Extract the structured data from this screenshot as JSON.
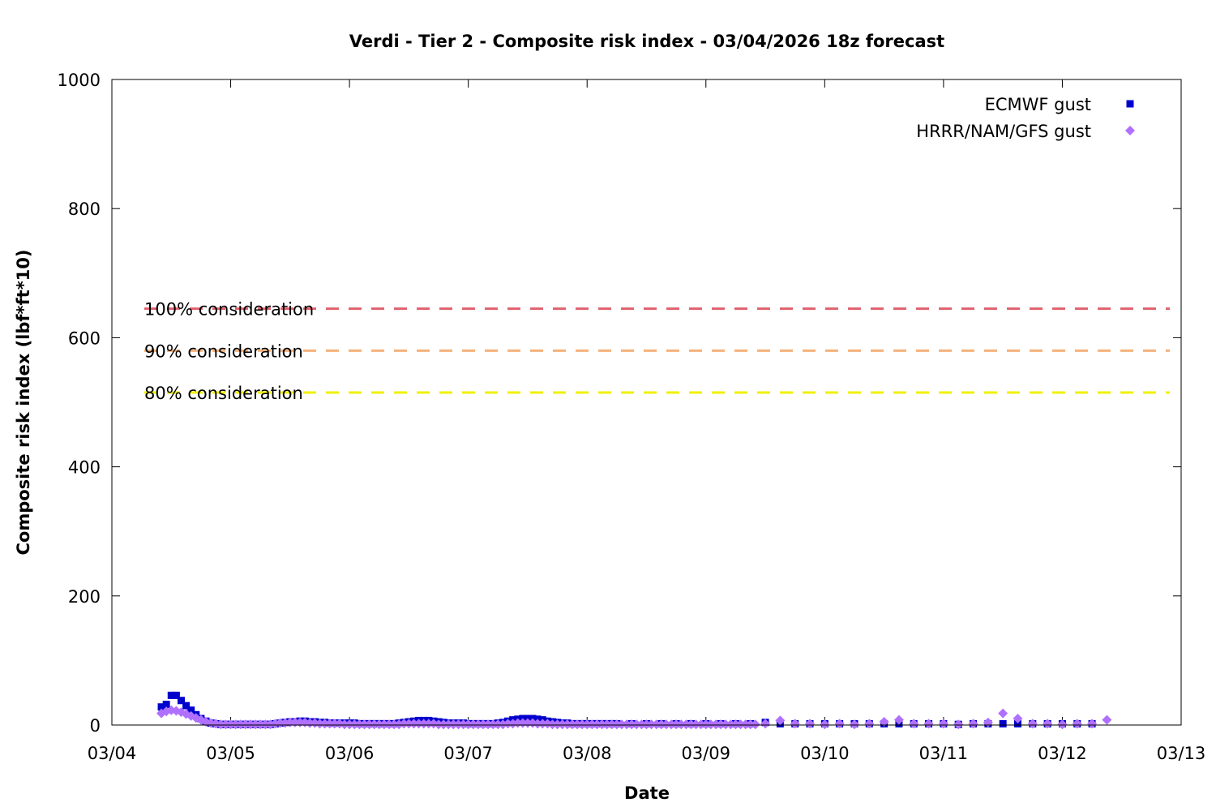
{
  "chart_data": {
    "type": "scatter",
    "title": "Verdi - Tier 2 - Composite risk index - 03/04/2026 18z forecast",
    "xlabel": "Date",
    "ylabel": "Composite risk index (lbf*ft*10)",
    "xlim": [
      "03/04 00z",
      "03/13 00z"
    ],
    "ylim": [
      0,
      1000
    ],
    "x_ticks": [
      "03/04",
      "03/05",
      "03/06",
      "03/07",
      "03/08",
      "03/09",
      "03/10",
      "03/11",
      "03/12",
      "03/13"
    ],
    "y_ticks": [
      "0",
      "200",
      "400",
      "600",
      "800",
      "1000"
    ],
    "legend_position": "top-right",
    "grid": false,
    "reference_lines": [
      {
        "label": "100% consideration",
        "value": 645,
        "color": "#e0606e"
      },
      {
        "label": "90% consideration",
        "value": 580,
        "color": "#f4b27c"
      },
      {
        "label": "80% consideration",
        "value": 515,
        "color": "#f0f000"
      }
    ],
    "series": [
      {
        "name": "ECMWF gust",
        "color": "#0000cc",
        "marker": "square",
        "points": [
          [
            "03/04 10z",
            28
          ],
          [
            "03/04 11z",
            32
          ],
          [
            "03/04 12z",
            46
          ],
          [
            "03/04 13z",
            46
          ],
          [
            "03/04 14z",
            38
          ],
          [
            "03/04 15z",
            30
          ],
          [
            "03/04 16z",
            23
          ],
          [
            "03/04 17z",
            16
          ],
          [
            "03/04 18z",
            10
          ],
          [
            "03/04 19z",
            6
          ],
          [
            "03/04 20z",
            3
          ],
          [
            "03/04 21z",
            2
          ],
          [
            "03/04 22z",
            1
          ],
          [
            "03/04 23z",
            1
          ],
          [
            "03/05 00z",
            1
          ],
          [
            "03/05 01z",
            1
          ],
          [
            "03/05 02z",
            1
          ],
          [
            "03/05 03z",
            1
          ],
          [
            "03/05 04z",
            1
          ],
          [
            "03/05 05z",
            1
          ],
          [
            "03/05 06z",
            1
          ],
          [
            "03/05 07z",
            1
          ],
          [
            "03/05 08z",
            1
          ],
          [
            "03/05 09z",
            2
          ],
          [
            "03/05 10z",
            3
          ],
          [
            "03/05 11z",
            4
          ],
          [
            "03/05 12z",
            5
          ],
          [
            "03/05 13z",
            5
          ],
          [
            "03/05 14z",
            6
          ],
          [
            "03/05 15z",
            6
          ],
          [
            "03/05 16z",
            5
          ],
          [
            "03/05 17z",
            5
          ],
          [
            "03/05 18z",
            4
          ],
          [
            "03/05 19z",
            4
          ],
          [
            "03/05 20z",
            3
          ],
          [
            "03/05 21z",
            3
          ],
          [
            "03/05 22z",
            3
          ],
          [
            "03/05 23z",
            3
          ],
          [
            "03/06 00z",
            3
          ],
          [
            "03/06 01z",
            3
          ],
          [
            "03/06 02z",
            2
          ],
          [
            "03/06 03z",
            2
          ],
          [
            "03/06 04z",
            2
          ],
          [
            "03/06 05z",
            2
          ],
          [
            "03/06 06z",
            2
          ],
          [
            "03/06 07z",
            2
          ],
          [
            "03/06 08z",
            2
          ],
          [
            "03/06 09z",
            2
          ],
          [
            "03/06 10z",
            3
          ],
          [
            "03/06 11z",
            4
          ],
          [
            "03/06 12z",
            5
          ],
          [
            "03/06 13z",
            6
          ],
          [
            "03/06 14z",
            7
          ],
          [
            "03/06 15z",
            7
          ],
          [
            "03/06 16z",
            7
          ],
          [
            "03/06 17z",
            6
          ],
          [
            "03/06 18z",
            5
          ],
          [
            "03/06 19z",
            4
          ],
          [
            "03/06 20z",
            3
          ],
          [
            "03/06 21z",
            3
          ],
          [
            "03/06 22z",
            3
          ],
          [
            "03/06 23z",
            3
          ],
          [
            "03/07 00z",
            2
          ],
          [
            "03/07 01z",
            2
          ],
          [
            "03/07 02z",
            2
          ],
          [
            "03/07 03z",
            2
          ],
          [
            "03/07 04z",
            2
          ],
          [
            "03/07 05z",
            2
          ],
          [
            "03/07 06z",
            3
          ],
          [
            "03/07 07z",
            4
          ],
          [
            "03/07 08z",
            6
          ],
          [
            "03/07 09z",
            8
          ],
          [
            "03/07 10z",
            9
          ],
          [
            "03/07 11z",
            10
          ],
          [
            "03/07 12z",
            10
          ],
          [
            "03/07 13z",
            10
          ],
          [
            "03/07 14z",
            9
          ],
          [
            "03/07 15z",
            8
          ],
          [
            "03/07 16z",
            6
          ],
          [
            "03/07 17z",
            5
          ],
          [
            "03/07 18z",
            4
          ],
          [
            "03/07 19z",
            3
          ],
          [
            "03/07 20z",
            3
          ],
          [
            "03/07 21z",
            2
          ],
          [
            "03/07 22z",
            2
          ],
          [
            "03/07 23z",
            2
          ],
          [
            "03/08 00z",
            2
          ],
          [
            "03/08 01z",
            2
          ],
          [
            "03/08 02z",
            2
          ],
          [
            "03/08 03z",
            2
          ],
          [
            "03/08 04z",
            2
          ],
          [
            "03/08 05z",
            2
          ],
          [
            "03/08 06z",
            2
          ],
          [
            "03/08 09z",
            2
          ],
          [
            "03/08 12z",
            2
          ],
          [
            "03/08 15z",
            2
          ],
          [
            "03/08 18z",
            2
          ],
          [
            "03/08 21z",
            2
          ],
          [
            "03/09 00z",
            2
          ],
          [
            "03/09 03z",
            2
          ],
          [
            "03/09 06z",
            2
          ],
          [
            "03/09 09z",
            2
          ],
          [
            "03/09 12z",
            4
          ],
          [
            "03/09 15z",
            2
          ],
          [
            "03/09 18z",
            2
          ],
          [
            "03/09 21z",
            2
          ],
          [
            "03/10 00z",
            2
          ],
          [
            "03/10 03z",
            2
          ],
          [
            "03/10 06z",
            2
          ],
          [
            "03/10 09z",
            2
          ],
          [
            "03/10 12z",
            2
          ],
          [
            "03/10 15z",
            2
          ],
          [
            "03/10 18z",
            2
          ],
          [
            "03/10 21z",
            2
          ],
          [
            "03/11 00z",
            2
          ],
          [
            "03/11 03z",
            1
          ],
          [
            "03/11 06z",
            2
          ],
          [
            "03/11 09z",
            2
          ],
          [
            "03/11 12z",
            2
          ],
          [
            "03/11 15z",
            2
          ],
          [
            "03/11 18z",
            2
          ],
          [
            "03/11 21z",
            2
          ],
          [
            "03/12 00z",
            2
          ],
          [
            "03/12 03z",
            2
          ],
          [
            "03/12 06z",
            2
          ]
        ]
      },
      {
        "name": "HRRR/NAM/GFS gust",
        "color": "#b070ff",
        "marker": "diamond",
        "points": [
          [
            "03/04 10z",
            18
          ],
          [
            "03/04 11z",
            21
          ],
          [
            "03/04 12z",
            23
          ],
          [
            "03/04 13z",
            22
          ],
          [
            "03/04 14z",
            20
          ],
          [
            "03/04 15z",
            17
          ],
          [
            "03/04 16z",
            14
          ],
          [
            "03/04 17z",
            11
          ],
          [
            "03/04 18z",
            8
          ],
          [
            "03/04 19z",
            5
          ],
          [
            "03/04 20z",
            3
          ],
          [
            "03/04 21z",
            2
          ],
          [
            "03/04 22z",
            1
          ],
          [
            "03/04 23z",
            1
          ],
          [
            "03/05 00z",
            1
          ],
          [
            "03/05 01z",
            1
          ],
          [
            "03/05 02z",
            1
          ],
          [
            "03/05 03z",
            1
          ],
          [
            "03/05 04z",
            1
          ],
          [
            "03/05 05z",
            1
          ],
          [
            "03/05 06z",
            1
          ],
          [
            "03/05 07z",
            1
          ],
          [
            "03/05 08z",
            1
          ],
          [
            "03/05 09z",
            2
          ],
          [
            "03/05 10z",
            3
          ],
          [
            "03/05 11z",
            3
          ],
          [
            "03/05 12z",
            4
          ],
          [
            "03/05 13z",
            4
          ],
          [
            "03/05 14z",
            4
          ],
          [
            "03/05 15z",
            4
          ],
          [
            "03/05 16z",
            3
          ],
          [
            "03/05 17z",
            3
          ],
          [
            "03/05 18z",
            2
          ],
          [
            "03/05 19z",
            2
          ],
          [
            "03/05 20z",
            2
          ],
          [
            "03/05 21z",
            2
          ],
          [
            "03/05 22z",
            2
          ],
          [
            "03/05 23z",
            1
          ],
          [
            "03/06 00z",
            1
          ],
          [
            "03/06 01z",
            1
          ],
          [
            "03/06 02z",
            1
          ],
          [
            "03/06 03z",
            1
          ],
          [
            "03/06 04z",
            1
          ],
          [
            "03/06 05z",
            1
          ],
          [
            "03/06 06z",
            1
          ],
          [
            "03/06 07z",
            1
          ],
          [
            "03/06 08z",
            1
          ],
          [
            "03/06 09z",
            1
          ],
          [
            "03/06 10z",
            1
          ],
          [
            "03/06 11z",
            2
          ],
          [
            "03/06 12z",
            2
          ],
          [
            "03/06 13z",
            2
          ],
          [
            "03/06 14z",
            2
          ],
          [
            "03/06 15z",
            2
          ],
          [
            "03/06 16z",
            2
          ],
          [
            "03/06 17z",
            2
          ],
          [
            "03/06 18z",
            1
          ],
          [
            "03/06 19z",
            1
          ],
          [
            "03/06 20z",
            1
          ],
          [
            "03/06 21z",
            1
          ],
          [
            "03/06 22z",
            1
          ],
          [
            "03/06 23z",
            1
          ],
          [
            "03/07 00z",
            1
          ],
          [
            "03/07 01z",
            1
          ],
          [
            "03/07 02z",
            1
          ],
          [
            "03/07 03z",
            1
          ],
          [
            "03/07 04z",
            1
          ],
          [
            "03/07 05z",
            1
          ],
          [
            "03/07 06z",
            1
          ],
          [
            "03/07 07z",
            1
          ],
          [
            "03/07 08z",
            2
          ],
          [
            "03/07 09z",
            2
          ],
          [
            "03/07 10z",
            3
          ],
          [
            "03/07 11z",
            3
          ],
          [
            "03/07 12z",
            3
          ],
          [
            "03/07 13z",
            3
          ],
          [
            "03/07 14z",
            2
          ],
          [
            "03/07 15z",
            2
          ],
          [
            "03/07 16z",
            2
          ],
          [
            "03/07 17z",
            1
          ],
          [
            "03/07 18z",
            1
          ],
          [
            "03/07 19z",
            1
          ],
          [
            "03/07 20z",
            1
          ],
          [
            "03/07 21z",
            1
          ],
          [
            "03/07 22z",
            1
          ],
          [
            "03/07 23z",
            1
          ],
          [
            "03/08 00z",
            1
          ],
          [
            "03/08 01z",
            1
          ],
          [
            "03/08 02z",
            1
          ],
          [
            "03/08 03z",
            1
          ],
          [
            "03/08 04z",
            1
          ],
          [
            "03/08 05z",
            1
          ],
          [
            "03/08 06z",
            1
          ],
          [
            "03/08 07z",
            1
          ],
          [
            "03/08 08z",
            1
          ],
          [
            "03/08 09z",
            1
          ],
          [
            "03/08 10z",
            1
          ],
          [
            "03/08 11z",
            1
          ],
          [
            "03/08 12z",
            1
          ],
          [
            "03/08 13z",
            1
          ],
          [
            "03/08 14z",
            1
          ],
          [
            "03/08 15z",
            1
          ],
          [
            "03/08 16z",
            1
          ],
          [
            "03/08 17z",
            1
          ],
          [
            "03/08 18z",
            1
          ],
          [
            "03/08 19z",
            1
          ],
          [
            "03/08 20z",
            1
          ],
          [
            "03/08 21z",
            1
          ],
          [
            "03/08 22z",
            1
          ],
          [
            "03/08 23z",
            1
          ],
          [
            "03/09 00z",
            1
          ],
          [
            "03/09 01z",
            1
          ],
          [
            "03/09 02z",
            1
          ],
          [
            "03/09 03z",
            1
          ],
          [
            "03/09 04z",
            1
          ],
          [
            "03/09 05z",
            1
          ],
          [
            "03/09 06z",
            1
          ],
          [
            "03/09 07z",
            1
          ],
          [
            "03/09 08z",
            1
          ],
          [
            "03/09 09z",
            1
          ],
          [
            "03/09 10z",
            1
          ],
          [
            "03/09 12z",
            2
          ],
          [
            "03/09 15z",
            7
          ],
          [
            "03/09 18z",
            2
          ],
          [
            "03/09 21z",
            2
          ],
          [
            "03/10 00z",
            1
          ],
          [
            "03/10 03z",
            2
          ],
          [
            "03/10 06z",
            1
          ],
          [
            "03/10 09z",
            2
          ],
          [
            "03/10 12z",
            5
          ],
          [
            "03/10 15z",
            8
          ],
          [
            "03/10 18z",
            2
          ],
          [
            "03/10 21z",
            2
          ],
          [
            "03/11 00z",
            2
          ],
          [
            "03/11 03z",
            1
          ],
          [
            "03/11 06z",
            2
          ],
          [
            "03/11 09z",
            4
          ],
          [
            "03/11 12z",
            18
          ],
          [
            "03/11 15z",
            10
          ],
          [
            "03/11 18z",
            2
          ],
          [
            "03/11 21z",
            2
          ],
          [
            "03/12 00z",
            1
          ],
          [
            "03/12 03z",
            2
          ],
          [
            "03/12 06z",
            2
          ],
          [
            "03/12 09z",
            8
          ]
        ]
      }
    ]
  }
}
